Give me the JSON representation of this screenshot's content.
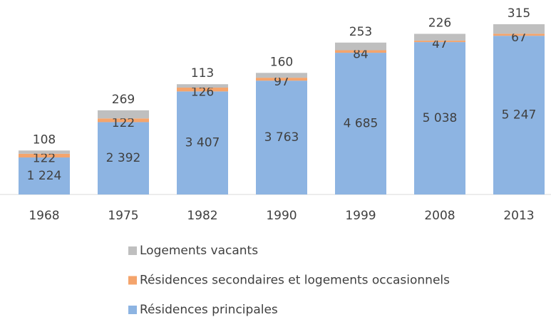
{
  "chart_data": {
    "type": "stacked-bar",
    "categories": [
      "1968",
      "1975",
      "1982",
      "1990",
      "1999",
      "2008",
      "2013"
    ],
    "series": [
      {
        "name": "Résidences principales",
        "color": "#8db4e2",
        "values": [
          1224,
          2392,
          3407,
          3763,
          4685,
          5038,
          5247
        ],
        "value_labels": [
          "1 224",
          "2 392",
          "3 407",
          "3 763",
          "4 685",
          "5 038",
          "5 247"
        ]
      },
      {
        "name": "Résidences secondaires et logements occasionnels",
        "color": "#f4a46c",
        "values": [
          122,
          122,
          126,
          97,
          84,
          47,
          67
        ]
      },
      {
        "name": "Logements vacants",
        "color": "#bfbfbf",
        "values": [
          108,
          269,
          113,
          160,
          253,
          226,
          315
        ]
      }
    ]
  }
}
